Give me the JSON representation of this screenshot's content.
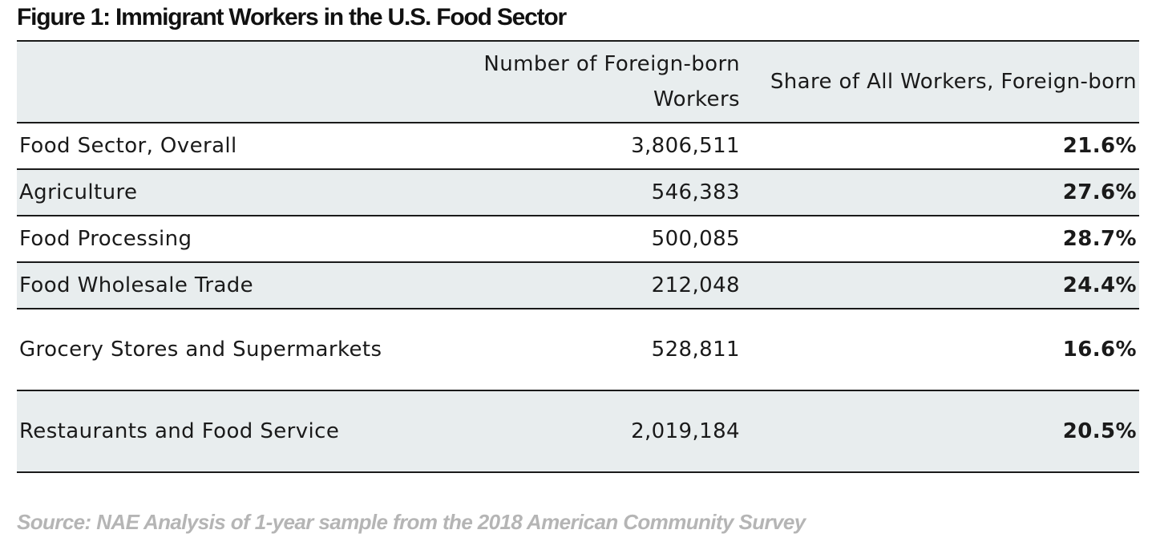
{
  "title": "Figure 1: Immigrant Workers in the U.S. Food Sector",
  "source": "Source: NAE Analysis of 1-year sample from the 2018 American Community Survey",
  "chart_data": {
    "type": "table",
    "title": "Figure 1: Immigrant Workers in the U.S. Food Sector",
    "columns": [
      "",
      "Number of Foreign-born Workers",
      "Share of All Workers, Foreign-born"
    ],
    "rows": [
      {
        "sector": "Food Sector, Overall",
        "workers": "3,806,511",
        "share": "21.6%"
      },
      {
        "sector": "Agriculture",
        "workers": "546,383",
        "share": "27.6%"
      },
      {
        "sector": "Food Processing",
        "workers": "500,085",
        "share": "28.7%"
      },
      {
        "sector": "Food Wholesale Trade",
        "workers": "212,048",
        "share": "24.4%"
      },
      {
        "sector": "Grocery Stores and Supermarkets",
        "workers": "528,811",
        "share": "16.6%"
      },
      {
        "sector": "Restaurants and Food Service",
        "workers": "2,019,184",
        "share": "20.5%"
      }
    ]
  }
}
